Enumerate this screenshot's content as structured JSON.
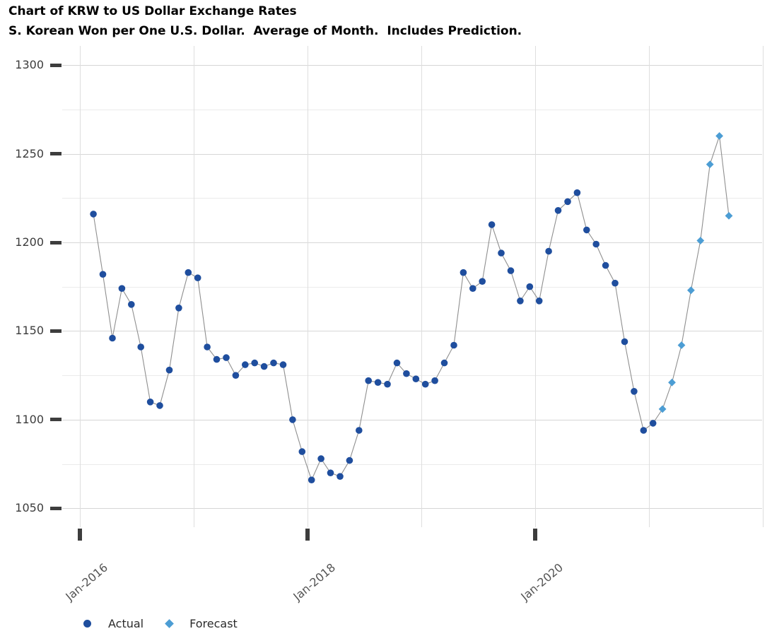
{
  "header": {
    "title": "Chart of KRW to US Dollar Exchange Rates",
    "subtitle": "S. Korean Won per One U.S. Dollar.  Average of Month.  Includes Prediction."
  },
  "legend": {
    "actual_label": "Actual",
    "forecast_label": "Forecast"
  },
  "colors": {
    "actual": "#1f4e9e",
    "forecast": "#4c9dd4",
    "line": "#8f8f8f",
    "grid_major": "#d6d6d6",
    "grid_minor": "#ebebeb",
    "grid_vertical": "#dedede",
    "tick": "#3d3d3d",
    "y_label": "#3c3c3c",
    "x_label": "#545454"
  },
  "chart_data": {
    "type": "line",
    "title": "Chart of KRW to US Dollar Exchange Rates",
    "subtitle": "S. Korean Won per One U.S. Dollar.  Average of Month.  Includes Prediction.",
    "xlabel": "",
    "ylabel": "",
    "grid": true,
    "legend_position": "bottom-left",
    "ylim": [
      1040,
      1311
    ],
    "y_ticks": [
      1050,
      1100,
      1150,
      1200,
      1250,
      1300
    ],
    "y_minor_ticks": [
      1075,
      1125,
      1175,
      1225,
      1275
    ],
    "x_ticks": [
      "Jan-2016",
      "Jan-2018",
      "Jan-2020"
    ],
    "x_year_gridlines": [
      "Jan-2016",
      "Jan-2017",
      "Jan-2018",
      "Jan-2019",
      "Jan-2020",
      "Jan-2021",
      "Jan-2022"
    ],
    "series": [
      {
        "name": "Actual",
        "marker": "circle",
        "color_key": "actual",
        "months": [
          "Feb-2016",
          "Mar-2016",
          "Apr-2016",
          "May-2016",
          "Jun-2016",
          "Jul-2016",
          "Aug-2016",
          "Sep-2016",
          "Oct-2016",
          "Nov-2016",
          "Dec-2016",
          "Jan-2017",
          "Feb-2017",
          "Mar-2017",
          "Apr-2017",
          "May-2017",
          "Jun-2017",
          "Jul-2017",
          "Aug-2017",
          "Sep-2017",
          "Oct-2017",
          "Nov-2017",
          "Dec-2017",
          "Jan-2018",
          "Feb-2018",
          "Mar-2018",
          "Apr-2018",
          "May-2018",
          "Jun-2018",
          "Jul-2018",
          "Aug-2018",
          "Sep-2018",
          "Oct-2018",
          "Nov-2018",
          "Dec-2018",
          "Jan-2019",
          "Feb-2019",
          "Mar-2019",
          "Apr-2019",
          "May-2019",
          "Jun-2019",
          "Jul-2019",
          "Aug-2019",
          "Sep-2019",
          "Oct-2019",
          "Nov-2019",
          "Dec-2019",
          "Jan-2020",
          "Feb-2020",
          "Mar-2020",
          "Apr-2020",
          "May-2020",
          "Jun-2020",
          "Jul-2020",
          "Aug-2020",
          "Sep-2020",
          "Oct-2020",
          "Nov-2020",
          "Dec-2020",
          "Jan-2021"
        ],
        "values": [
          1216,
          1182,
          1146,
          1174,
          1165,
          1141,
          1110,
          1108,
          1128,
          1163,
          1183,
          1180,
          1141,
          1134,
          1135,
          1125,
          1131,
          1132,
          1130,
          1132,
          1131,
          1100,
          1082,
          1066,
          1078,
          1070,
          1068,
          1077,
          1094,
          1122,
          1121,
          1120,
          1132,
          1126,
          1123,
          1120,
          1122,
          1132,
          1142,
          1183,
          1174,
          1178,
          1210,
          1194,
          1184,
          1167,
          1175,
          1167,
          1195,
          1218,
          1223,
          1228,
          1207,
          1199,
          1187,
          1177,
          1144,
          1116,
          1094,
          1098
        ]
      },
      {
        "name": "Forecast",
        "marker": "diamond",
        "color_key": "forecast",
        "months": [
          "Feb-2021",
          "Mar-2021",
          "Apr-2021",
          "May-2021",
          "Jun-2021",
          "Jul-2021",
          "Aug-2021",
          "Sep-2021"
        ],
        "values": [
          1106,
          1121,
          1142,
          1173,
          1201,
          1244,
          1260,
          1215
        ]
      }
    ]
  }
}
